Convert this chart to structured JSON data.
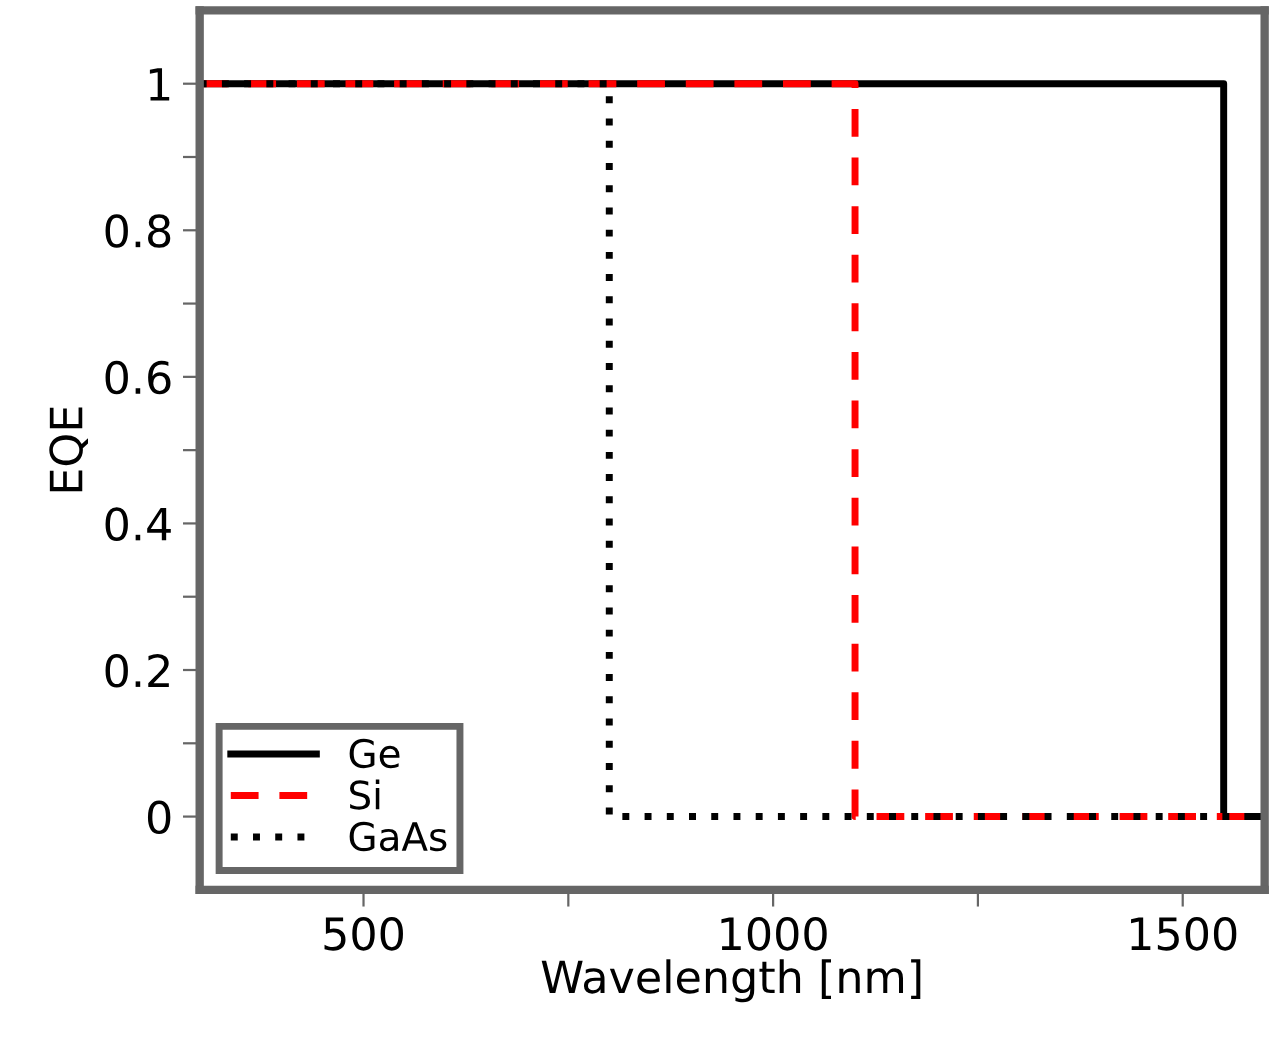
{
  "chart_data": {
    "type": "line",
    "xlabel": "Wavelength [nm]",
    "ylabel": "EQE",
    "series": [
      {
        "name": "Ge",
        "color": "#000000",
        "line_style": "solid",
        "x": [
          300,
          1550,
          1550,
          1600
        ],
        "values": [
          1,
          1,
          0,
          0
        ]
      },
      {
        "name": "Si",
        "color": "#ff0000",
        "line_style": "dashed",
        "x": [
          300,
          1100,
          1100,
          1600
        ],
        "values": [
          1,
          1,
          0,
          0
        ]
      },
      {
        "name": "GaAs",
        "color": "#000000",
        "line_style": "dotted",
        "x": [
          300,
          800,
          800,
          1600
        ],
        "values": [
          1,
          1,
          0,
          0
        ]
      }
    ],
    "xlim": [
      300,
      1600
    ],
    "ylim": [
      -0.1,
      1.1
    ],
    "xticks": [
      500,
      {
        "value": 750,
        "label": null
      },
      1000,
      {
        "value": 1250,
        "label": null
      },
      1500
    ],
    "yticks": [
      0,
      {
        "value": 0.1,
        "label": null
      },
      0.2,
      {
        "value": 0.3,
        "label": null
      },
      0.4,
      {
        "value": 0.5,
        "label": null
      },
      0.6,
      {
        "value": 0.7,
        "label": null
      },
      0.8,
      {
        "value": 0.9,
        "label": null
      },
      1
    ],
    "grid": false,
    "legend": "bottom left",
    "marker": "none"
  }
}
